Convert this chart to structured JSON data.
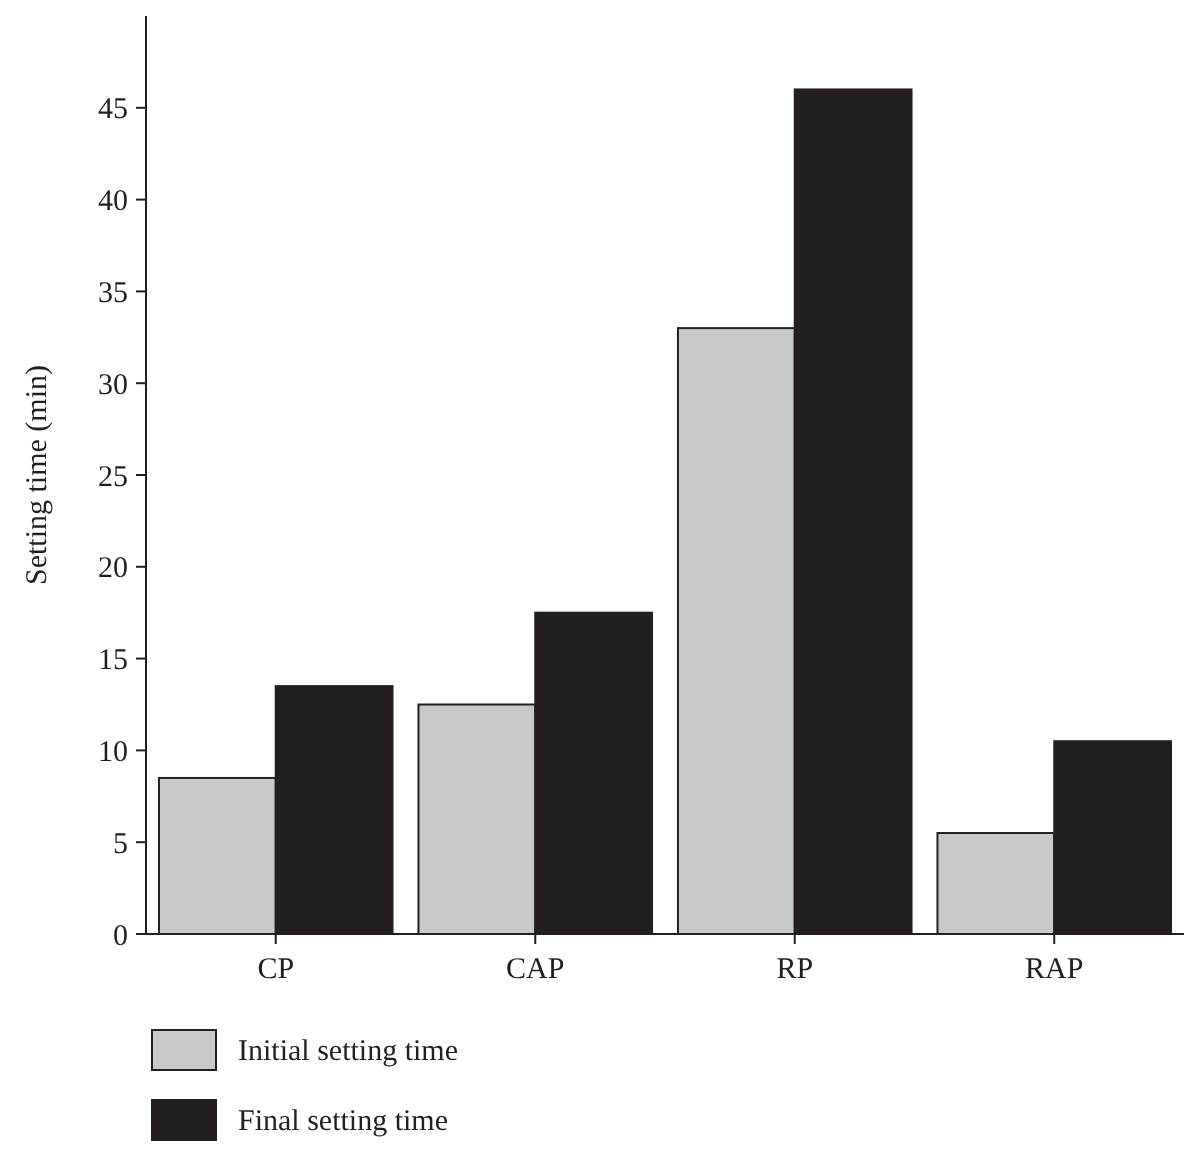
{
  "chart_data": {
    "type": "bar",
    "ylabel": "Setting time (min)",
    "categories": [
      "CP",
      "CAP",
      "RP",
      "RAP"
    ],
    "series": [
      {
        "name": "Initial setting time",
        "color": "#c8c9cb",
        "values": [
          8.5,
          12.5,
          33,
          5.5
        ]
      },
      {
        "name": "Final setting time",
        "color": "#231f20",
        "values": [
          13.5,
          17.5,
          46,
          10.5
        ]
      }
    ],
    "ylim": [
      0,
      50
    ],
    "yticks": [
      0,
      5,
      10,
      15,
      20,
      25,
      30,
      35,
      40,
      45
    ],
    "legend": "bottom"
  }
}
